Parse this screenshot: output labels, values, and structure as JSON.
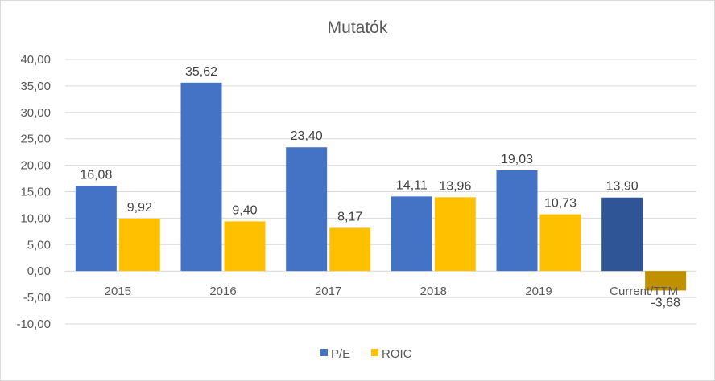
{
  "chart_data": {
    "type": "bar",
    "title": "Mutatók",
    "categories": [
      "2015",
      "2016",
      "2017",
      "2018",
      "2019",
      "Current/TTM"
    ],
    "series": [
      {
        "name": "P/E",
        "values": [
          16.08,
          35.62,
          23.4,
          14.11,
          19.03,
          13.9
        ],
        "labels": [
          "16,08",
          "35,62",
          "23,40",
          "14,11",
          "19,03",
          "13,90"
        ],
        "color": "#4472C4",
        "highlight_last": "#2F5597"
      },
      {
        "name": "ROIC",
        "values": [
          9.92,
          9.4,
          8.17,
          13.96,
          10.73,
          -3.68
        ],
        "labels": [
          "9,92",
          "9,40",
          "8,17",
          "13,96",
          "10,73",
          "-3,68"
        ],
        "color": "#FFC000",
        "highlight_last": "#BF9000"
      }
    ],
    "ylim": [
      -10,
      40
    ],
    "yticks": [
      40,
      35,
      30,
      25,
      20,
      15,
      10,
      5,
      0,
      -5,
      -10
    ],
    "ytick_labels": [
      "40,00",
      "35,00",
      "30,00",
      "25,00",
      "20,00",
      "15,00",
      "10,00",
      "5,00",
      "0,00",
      "-5,00",
      "-10,00"
    ],
    "grid": true,
    "legend_position": "bottom",
    "gridline_color": "#d9d9d9"
  }
}
